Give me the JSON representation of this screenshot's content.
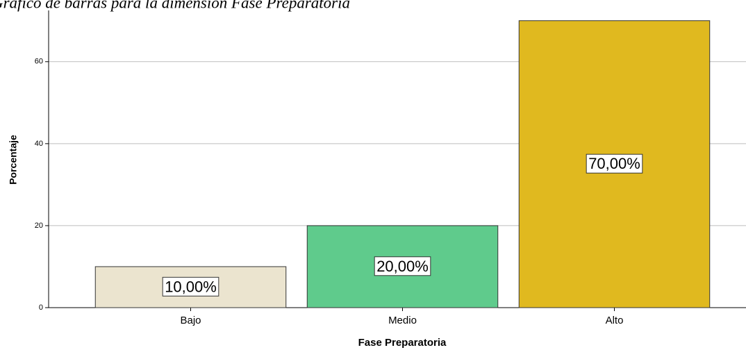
{
  "chart_data": {
    "type": "bar",
    "title": "Gráfico de barras para la dimensión Fase Preparatoria",
    "x_label": "Fase Preparatoria",
    "y_label": "Porcentaje",
    "categories": [
      "Bajo",
      "Medio",
      "Alto"
    ],
    "values": [
      10,
      20,
      70
    ],
    "value_labels": [
      "10,00%",
      "20,00%",
      "70,00%"
    ],
    "colors": [
      "#ebe4cf",
      "#5fcb8c",
      "#e0b91f"
    ],
    "ylim": [
      0,
      72.5
    ],
    "yticks": [
      0,
      20,
      40,
      60
    ],
    "grid": true
  }
}
